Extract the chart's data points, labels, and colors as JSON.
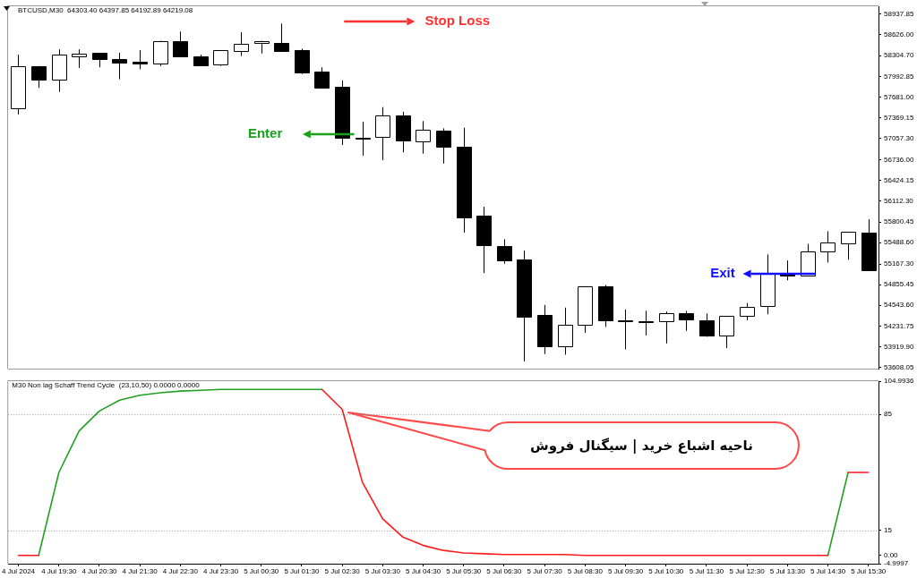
{
  "chart_data": [
    {
      "type": "candlestick",
      "title": "BTCUSD,M30  64303.40 64397.85 64192.89 64219.08",
      "categories": [
        null,
        null,
        null,
        null,
        null,
        null,
        null,
        null,
        null,
        null,
        null,
        null,
        null,
        null,
        null,
        null,
        null,
        null,
        null,
        null,
        null,
        null,
        null,
        null,
        null,
        null,
        null,
        null,
        null,
        null,
        null,
        null,
        null,
        null,
        null,
        null,
        null,
        null,
        null,
        null,
        null,
        null,
        null
      ],
      "ohlc": [
        [
          57520,
          58320,
          57420,
          58150
        ],
        [
          58150,
          58150,
          57820,
          57950
        ],
        [
          57940,
          58400,
          57760,
          58320
        ],
        [
          58300,
          58400,
          58120,
          58340
        ],
        [
          58350,
          58350,
          58130,
          58260
        ],
        [
          58260,
          58350,
          57950,
          58210
        ],
        [
          58210,
          58390,
          58100,
          58180
        ],
        [
          58180,
          58530,
          58150,
          58520
        ],
        [
          58520,
          58670,
          58290,
          58290
        ],
        [
          58300,
          58320,
          58170,
          58170
        ],
        [
          58170,
          58390,
          58150,
          58390
        ],
        [
          58380,
          58660,
          58300,
          58490
        ],
        [
          58490,
          58530,
          58340,
          58520
        ],
        [
          58500,
          58790,
          58380,
          58380
        ],
        [
          58390,
          58410,
          58030,
          58050
        ],
        [
          58060,
          58130,
          57820,
          57820
        ],
        [
          57830,
          57930,
          56960,
          57060
        ],
        [
          57070,
          57310,
          56800,
          57060
        ],
        [
          57070,
          57530,
          56730,
          57400
        ],
        [
          57400,
          57460,
          56850,
          57020
        ],
        [
          57020,
          57320,
          56830,
          57190
        ],
        [
          57180,
          57210,
          56680,
          56940
        ],
        [
          56940,
          57220,
          55640,
          55870
        ],
        [
          55890,
          56030,
          55030,
          55440
        ],
        [
          55440,
          55540,
          55170,
          55230
        ],
        [
          55240,
          55370,
          53700,
          54380
        ],
        [
          54400,
          54550,
          53810,
          53930
        ],
        [
          53930,
          54510,
          53800,
          54250
        ],
        [
          54250,
          54830,
          54130,
          54830
        ],
        [
          54830,
          54850,
          54220,
          54320
        ],
        [
          54320,
          54480,
          53880,
          54300
        ],
        [
          54300,
          54460,
          54090,
          54290
        ],
        [
          54300,
          54450,
          53970,
          54420
        ],
        [
          54420,
          54460,
          54160,
          54320
        ],
        [
          54320,
          54420,
          54070,
          54090
        ],
        [
          54090,
          54380,
          53900,
          54380
        ],
        [
          54380,
          54580,
          54320,
          54520
        ],
        [
          54530,
          55310,
          54410,
          55020
        ],
        [
          55030,
          55220,
          54920,
          54990
        ],
        [
          54990,
          55470,
          54990,
          55350
        ],
        [
          55350,
          55660,
          55190,
          55490
        ],
        [
          55480,
          55650,
          55230,
          55650
        ],
        [
          55640,
          55840,
          55060,
          55070
        ]
      ],
      "color": "#000000",
      "colors": [
        "#ffffff",
        "#000000",
        "#ffffff",
        "#ffffff",
        "#000000",
        "#000000",
        "#000000",
        "#ffffff",
        "#000000",
        "#000000",
        "#ffffff",
        "#ffffff",
        "#ffffff",
        "#000000",
        "#000000",
        "#000000",
        "#000000",
        "#000000",
        "#ffffff",
        "#000000",
        "#ffffff",
        "#000000",
        "#000000",
        "#000000",
        "#000000",
        "#000000",
        "#000000",
        "#ffffff",
        "#ffffff",
        "#000000",
        "#000000",
        "#000000",
        "#ffffff",
        "#000000",
        "#000000",
        "#ffffff",
        "#ffffff",
        "#ffffff",
        "#000000",
        "#ffffff",
        "#ffffff",
        "#ffffff",
        "#000000"
      ],
      "ylim": [
        53590,
        59050
      ],
      "yticks": [
        58937.85,
        {
          "value": 58626,
          "label": "58626.00"
        },
        {
          "value": 58304.7,
          "label": "58304.70"
        },
        57992.85,
        {
          "value": 57681,
          "label": "57681.00"
        },
        57369.15,
        {
          "value": 57057.3,
          "label": "57057.30"
        },
        {
          "value": 56736,
          "label": "56736.00"
        },
        56424.15,
        {
          "value": 56112.3,
          "label": "56112.30"
        },
        55800.45,
        {
          "value": 55488.6,
          "label": "55488.60"
        },
        {
          "value": 55167.3,
          "label": "55167.30"
        },
        54855.45,
        {
          "value": 54543.6,
          "label": "54543.60"
        },
        54231.75,
        {
          "value": 53919.9,
          "label": "53919.90"
        },
        53608.05
      ],
      "tick_labels": "y",
      "annotations": [
        "Stop Loss",
        "Enter",
        "Exit"
      ]
    },
    {
      "type": "line",
      "title": "M30 Non lag Schaff Trend Cycle  (23,10,50) 0.0000 0.0000",
      "categories": [
        "4 Jul 2024",
        null,
        "4 Jul 19:30",
        null,
        "4 Jul 20:30",
        null,
        "4 Jul 21:30",
        null,
        "4 Jul 22:30",
        null,
        "4 Jul 23:30",
        null,
        "5 Jul 00:30",
        null,
        "5 Jul 01:30",
        null,
        "5 Jul 02:30",
        null,
        "5 Jul 03:30",
        null,
        "5 Jul 04:30",
        null,
        "5 Jul 05:30",
        null,
        "5 Jul 06:30",
        null,
        "5 Jul 07:30",
        null,
        "5 Jul 08:30",
        null,
        "5 Jul 09:30",
        null,
        "5 Jul 10:30",
        null,
        "5 Jul 11:30",
        null,
        "5 Jul 12:30",
        null,
        "5 Jul 13:30",
        null,
        "5 Jul 14:30",
        null,
        "5 Jul 15:30"
      ],
      "series": [
        {
          "color": "#ff1a1a",
          "values": [
            0,
            0,
            null,
            null,
            null,
            null,
            null,
            null,
            null,
            null,
            null,
            null,
            null,
            null,
            null,
            100,
            88,
            44,
            22,
            11,
            6,
            3,
            1.5,
            1,
            0.5,
            0.5,
            0.5,
            0.5,
            0,
            0,
            0,
            0,
            0,
            0,
            0,
            0,
            0,
            0,
            0,
            0,
            0,
            null,
            null
          ]
        },
        {
          "color": "#ff1a1a",
          "values": [
            null,
            null,
            null,
            null,
            null,
            null,
            null,
            null,
            null,
            null,
            null,
            null,
            null,
            null,
            null,
            null,
            null,
            null,
            null,
            null,
            null,
            null,
            null,
            null,
            null,
            null,
            null,
            null,
            null,
            null,
            null,
            null,
            null,
            null,
            null,
            null,
            null,
            null,
            null,
            null,
            null,
            50,
            50
          ]
        },
        {
          "color": "#22a022",
          "values": [
            null,
            0,
            50,
            75,
            87,
            93.5,
            96.5,
            98,
            99,
            99.5,
            100,
            100,
            100,
            100,
            100,
            100,
            null,
            null,
            null,
            null,
            null,
            null,
            null,
            null,
            null,
            null,
            null,
            null,
            null,
            null,
            null,
            null,
            null,
            null,
            null,
            null,
            null,
            null,
            null,
            null,
            0,
            50,
            null
          ]
        }
      ],
      "ylim": [
        -4.9997,
        104.9936
      ],
      "yticks": [
        104.9936,
        85,
        15,
        {
          "value": 0,
          "label": "0.00"
        },
        -4.9997
      ],
      "ref_lines": [
        {
          "axis": "y",
          "value": 85,
          "color": "#9a9a9a",
          "line_style": "dotted"
        },
        {
          "axis": "y",
          "value": 15,
          "color": "#9a9a9a",
          "line_style": "dotted"
        }
      ],
      "annotations": [
        "ناحیه اشباع خرید | سیگنال فروش"
      ]
    }
  ]
}
